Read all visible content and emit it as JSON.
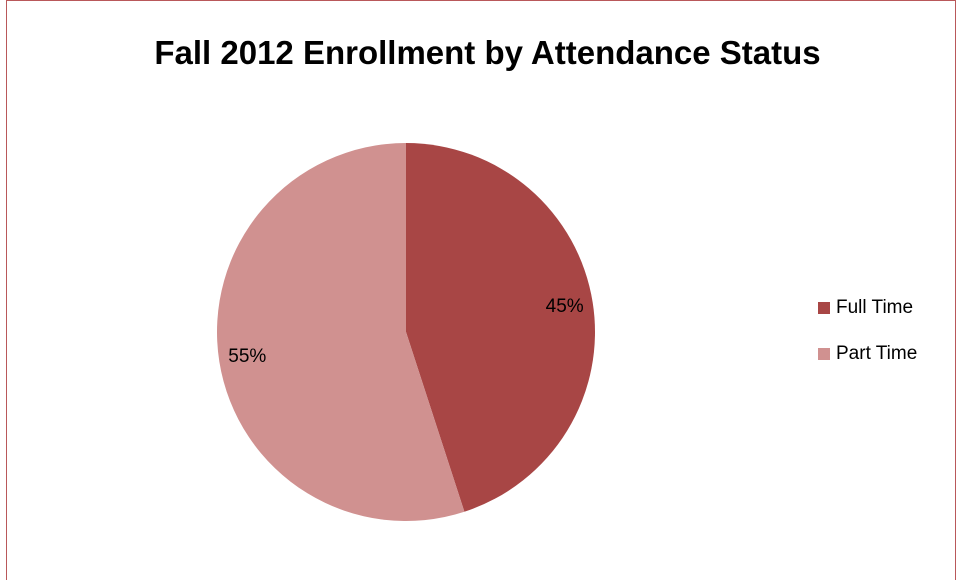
{
  "chart_data": {
    "type": "pie",
    "title": "Fall 2012 Enrollment by Attendance Status",
    "slices": [
      {
        "name": "Full Time",
        "value": 45,
        "label": "45%",
        "color": "#a84645"
      },
      {
        "name": "Part Time",
        "value": 55,
        "label": "55%",
        "color": "#d09190"
      }
    ],
    "legend_position": "right",
    "start_angle_deg": 0,
    "direction": "clockwise"
  },
  "colors": {
    "frame_border": "#b9585a"
  }
}
